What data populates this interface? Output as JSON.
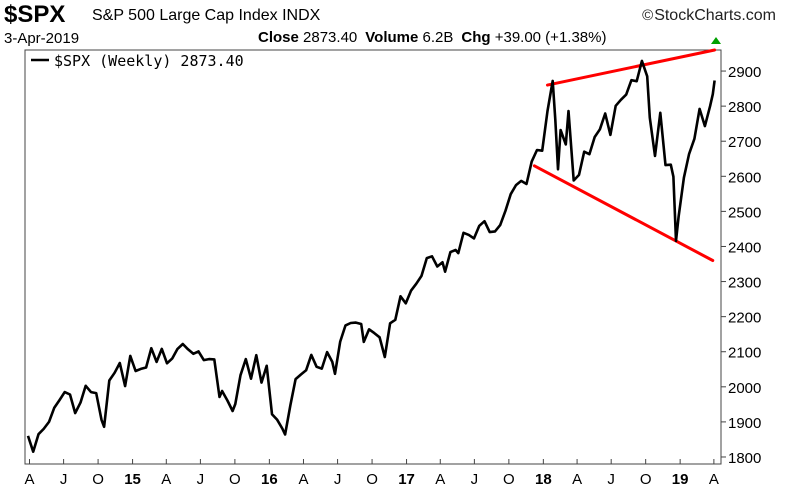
{
  "header": {
    "symbol": "$SPX",
    "description": "S&P 500 Large Cap Index",
    "exchange": "INDX",
    "brand": "StockCharts.com",
    "date": "3-Apr-2019",
    "close_label": "Close",
    "close_value": "2873.40",
    "volume_label": "Volume",
    "volume_value": "6.2B",
    "chg_label": "Chg",
    "chg_value": "+39.00 (+1.38%)",
    "chg_arrow_color": "#00a000"
  },
  "chart_data": {
    "type": "line",
    "title": "$SPX S&P 500 Large Cap Index INDX",
    "legend": "$SPX (Weekly) 2873.40",
    "line_color": "#000000",
    "trendline_color": "#ff0000",
    "ylim": [
      1780,
      2960
    ],
    "y_scale": "linear",
    "y_ticks": [
      1800,
      1900,
      2000,
      2100,
      2200,
      2300,
      2400,
      2500,
      2600,
      2700,
      2800,
      2900
    ],
    "x_tick_labels": [
      {
        "label": "A",
        "date": "2014-04-01",
        "bold": false
      },
      {
        "label": "J",
        "date": "2014-07-01",
        "bold": false
      },
      {
        "label": "O",
        "date": "2014-10-01",
        "bold": false
      },
      {
        "label": "15",
        "date": "2015-01-01",
        "bold": true
      },
      {
        "label": "A",
        "date": "2015-04-01",
        "bold": false
      },
      {
        "label": "J",
        "date": "2015-07-01",
        "bold": false
      },
      {
        "label": "O",
        "date": "2015-10-01",
        "bold": false
      },
      {
        "label": "16",
        "date": "2016-01-01",
        "bold": true
      },
      {
        "label": "A",
        "date": "2016-04-01",
        "bold": false
      },
      {
        "label": "J",
        "date": "2016-07-01",
        "bold": false
      },
      {
        "label": "O",
        "date": "2016-10-01",
        "bold": false
      },
      {
        "label": "17",
        "date": "2017-01-01",
        "bold": true
      },
      {
        "label": "A",
        "date": "2017-04-01",
        "bold": false
      },
      {
        "label": "J",
        "date": "2017-07-01",
        "bold": false
      },
      {
        "label": "O",
        "date": "2017-10-01",
        "bold": false
      },
      {
        "label": "18",
        "date": "2018-01-01",
        "bold": true
      },
      {
        "label": "A",
        "date": "2018-04-01",
        "bold": false
      },
      {
        "label": "J",
        "date": "2018-07-01",
        "bold": false
      },
      {
        "label": "O",
        "date": "2018-10-01",
        "bold": false
      },
      {
        "label": "19",
        "date": "2019-01-01",
        "bold": true
      },
      {
        "label": "A",
        "date": "2019-04-01",
        "bold": false
      }
    ],
    "x_range": [
      "2014-03-20",
      "2019-04-20"
    ],
    "series": [
      {
        "name": "$SPX (Weekly)",
        "points": [
          [
            "2014-03-28",
            1860
          ],
          [
            "2014-04-11",
            1815
          ],
          [
            "2014-04-25",
            1865
          ],
          [
            "2014-05-09",
            1880
          ],
          [
            "2014-05-23",
            1900
          ],
          [
            "2014-06-06",
            1940
          ],
          [
            "2014-06-20",
            1962
          ],
          [
            "2014-07-04",
            1985
          ],
          [
            "2014-07-18",
            1978
          ],
          [
            "2014-08-01",
            1925
          ],
          [
            "2014-08-15",
            1955
          ],
          [
            "2014-08-29",
            2003
          ],
          [
            "2014-09-12",
            1985
          ],
          [
            "2014-09-26",
            1982
          ],
          [
            "2014-10-10",
            1906
          ],
          [
            "2014-10-17",
            1886
          ],
          [
            "2014-10-31",
            2018
          ],
          [
            "2014-11-14",
            2040
          ],
          [
            "2014-11-28",
            2068
          ],
          [
            "2014-12-12",
            2002
          ],
          [
            "2014-12-26",
            2088
          ],
          [
            "2015-01-09",
            2045
          ],
          [
            "2015-01-23",
            2051
          ],
          [
            "2015-02-06",
            2055
          ],
          [
            "2015-02-20",
            2110
          ],
          [
            "2015-03-06",
            2071
          ],
          [
            "2015-03-20",
            2108
          ],
          [
            "2015-04-03",
            2067
          ],
          [
            "2015-04-17",
            2081
          ],
          [
            "2015-05-01",
            2108
          ],
          [
            "2015-05-15",
            2122
          ],
          [
            "2015-05-29",
            2107
          ],
          [
            "2015-06-12",
            2094
          ],
          [
            "2015-06-26",
            2101
          ],
          [
            "2015-07-10",
            2076
          ],
          [
            "2015-07-24",
            2079
          ],
          [
            "2015-08-07",
            2078
          ],
          [
            "2015-08-21",
            1971
          ],
          [
            "2015-08-28",
            1988
          ],
          [
            "2015-09-11",
            1961
          ],
          [
            "2015-09-25",
            1931
          ],
          [
            "2015-10-02",
            1951
          ],
          [
            "2015-10-16",
            2033
          ],
          [
            "2015-10-30",
            2079
          ],
          [
            "2015-11-13",
            2023
          ],
          [
            "2015-11-27",
            2090
          ],
          [
            "2015-12-11",
            2012
          ],
          [
            "2015-12-25",
            2060
          ],
          [
            "2016-01-08",
            1922
          ],
          [
            "2016-01-22",
            1906
          ],
          [
            "2016-02-05",
            1880
          ],
          [
            "2016-02-12",
            1864
          ],
          [
            "2016-02-26",
            1948
          ],
          [
            "2016-03-11",
            2022
          ],
          [
            "2016-03-25",
            2035
          ],
          [
            "2016-04-08",
            2047
          ],
          [
            "2016-04-22",
            2091
          ],
          [
            "2016-05-06",
            2057
          ],
          [
            "2016-05-20",
            2052
          ],
          [
            "2016-06-03",
            2099
          ],
          [
            "2016-06-17",
            2071
          ],
          [
            "2016-06-24",
            2037
          ],
          [
            "2016-07-08",
            2129
          ],
          [
            "2016-07-22",
            2175
          ],
          [
            "2016-08-05",
            2182
          ],
          [
            "2016-08-19",
            2183
          ],
          [
            "2016-09-02",
            2179
          ],
          [
            "2016-09-09",
            2128
          ],
          [
            "2016-09-23",
            2164
          ],
          [
            "2016-10-07",
            2153
          ],
          [
            "2016-10-21",
            2141
          ],
          [
            "2016-11-04",
            2085
          ],
          [
            "2016-11-18",
            2181
          ],
          [
            "2016-12-02",
            2191
          ],
          [
            "2016-12-16",
            2258
          ],
          [
            "2016-12-30",
            2238
          ],
          [
            "2017-01-13",
            2274
          ],
          [
            "2017-01-27",
            2294
          ],
          [
            "2017-02-10",
            2316
          ],
          [
            "2017-02-24",
            2367
          ],
          [
            "2017-03-10",
            2372
          ],
          [
            "2017-03-24",
            2343
          ],
          [
            "2017-04-07",
            2355
          ],
          [
            "2017-04-14",
            2328
          ],
          [
            "2017-04-28",
            2384
          ],
          [
            "2017-05-12",
            2390
          ],
          [
            "2017-05-19",
            2381
          ],
          [
            "2017-06-02",
            2439
          ],
          [
            "2017-06-16",
            2433
          ],
          [
            "2017-06-30",
            2423
          ],
          [
            "2017-07-14",
            2459
          ],
          [
            "2017-07-28",
            2472
          ],
          [
            "2017-08-11",
            2441
          ],
          [
            "2017-08-25",
            2443
          ],
          [
            "2017-09-08",
            2461
          ],
          [
            "2017-09-22",
            2502
          ],
          [
            "2017-10-06",
            2549
          ],
          [
            "2017-10-20",
            2575
          ],
          [
            "2017-11-03",
            2587
          ],
          [
            "2017-11-17",
            2578
          ],
          [
            "2017-12-01",
            2642
          ],
          [
            "2017-12-15",
            2675
          ],
          [
            "2017-12-29",
            2673
          ],
          [
            "2018-01-12",
            2786
          ],
          [
            "2018-01-26",
            2872
          ],
          [
            "2018-02-02",
            2762
          ],
          [
            "2018-02-09",
            2620
          ],
          [
            "2018-02-16",
            2732
          ],
          [
            "2018-03-02",
            2691
          ],
          [
            "2018-03-09",
            2786
          ],
          [
            "2018-03-23",
            2588
          ],
          [
            "2018-04-06",
            2604
          ],
          [
            "2018-04-20",
            2670
          ],
          [
            "2018-05-04",
            2663
          ],
          [
            "2018-05-18",
            2712
          ],
          [
            "2018-06-01",
            2734
          ],
          [
            "2018-06-15",
            2779
          ],
          [
            "2018-06-29",
            2718
          ],
          [
            "2018-07-13",
            2801
          ],
          [
            "2018-07-27",
            2818
          ],
          [
            "2018-08-10",
            2833
          ],
          [
            "2018-08-24",
            2874
          ],
          [
            "2018-09-07",
            2871
          ],
          [
            "2018-09-21",
            2929
          ],
          [
            "2018-10-05",
            2885
          ],
          [
            "2018-10-12",
            2767
          ],
          [
            "2018-10-26",
            2658
          ],
          [
            "2018-11-09",
            2781
          ],
          [
            "2018-11-23",
            2632
          ],
          [
            "2018-12-07",
            2633
          ],
          [
            "2018-12-14",
            2599
          ],
          [
            "2018-12-21",
            2416
          ],
          [
            "2018-12-28",
            2485
          ],
          [
            "2019-01-11",
            2596
          ],
          [
            "2019-01-25",
            2664
          ],
          [
            "2019-02-08",
            2707
          ],
          [
            "2019-02-22",
            2792
          ],
          [
            "2019-03-08",
            2743
          ],
          [
            "2019-03-22",
            2800
          ],
          [
            "2019-03-29",
            2834
          ],
          [
            "2019-04-03",
            2873
          ]
        ]
      }
    ],
    "trendlines": [
      {
        "from": [
          "2018-01-12",
          2860
        ],
        "to": [
          "2019-04-03",
          2960
        ]
      },
      {
        "from": [
          "2017-12-08",
          2630
        ],
        "to": [
          "2019-03-29",
          2360
        ]
      }
    ]
  }
}
